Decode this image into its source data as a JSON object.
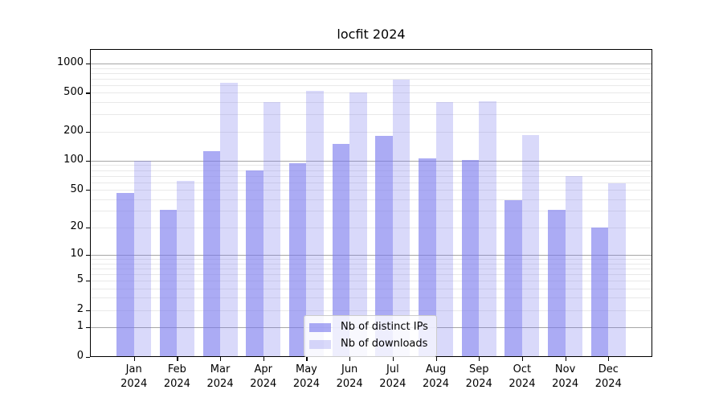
{
  "chart_data": {
    "type": "bar",
    "title": "locfit 2024",
    "categories": [
      "Jan",
      "Feb",
      "Mar",
      "Apr",
      "May",
      "Jun",
      "Jul",
      "Aug",
      "Sep",
      "Oct",
      "Nov",
      "Dec"
    ],
    "x_year_label": "2024",
    "series": [
      {
        "name": "Nb of distinct IPs",
        "color": "rgba(119,119,238,0.62)",
        "values": [
          46,
          31,
          125,
          80,
          95,
          148,
          180,
          105,
          101,
          39,
          31,
          20
        ]
      },
      {
        "name": "Nb of downloads",
        "color": "rgba(119,119,238,0.28)",
        "values": [
          100,
          62,
          630,
          400,
          525,
          505,
          680,
          400,
          410,
          185,
          70,
          58
        ]
      }
    ],
    "y_axis": {
      "scale": "log1p",
      "tick_labels": [
        0,
        1,
        2,
        5,
        10,
        20,
        50,
        100,
        200,
        500,
        1000
      ],
      "major_gridlines": [
        1,
        10,
        100,
        1000
      ],
      "minor_gridline_decades": [
        1,
        10,
        100
      ],
      "ylim_top": 1380
    },
    "legend": {
      "position": "lower center"
    },
    "grid": {
      "major_color": "#a6a6a6",
      "minor_color": "#e9e9e9"
    },
    "axis_color": "#000000"
  }
}
